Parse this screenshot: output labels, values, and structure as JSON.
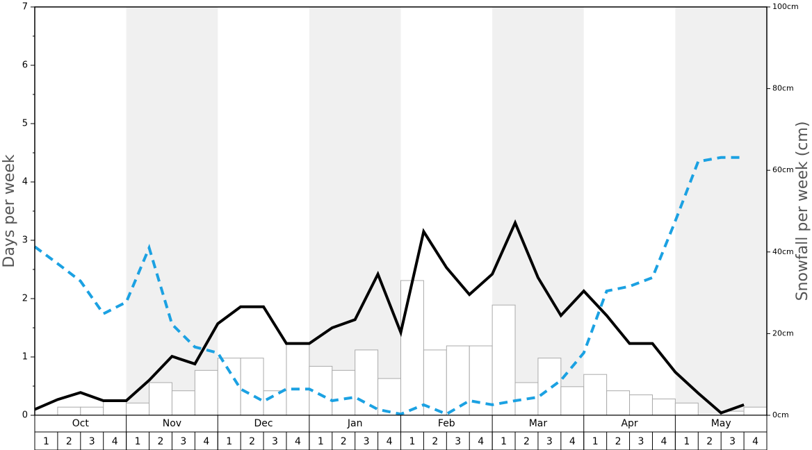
{
  "chart_data": {
    "type": "bar_line",
    "ylabel": "Days per week",
    "y2label": "Snowfall per week (cm)",
    "months": [
      "Oct",
      "Nov",
      "Dec",
      "Jan",
      "Feb",
      "Mar",
      "Apr",
      "May"
    ],
    "categories": [
      "1",
      "2",
      "3",
      "4",
      "1",
      "2",
      "3",
      "4",
      "1",
      "2",
      "3",
      "4",
      "1",
      "2",
      "3",
      "4",
      "1",
      "2",
      "3",
      "4",
      "1",
      "2",
      "3",
      "4",
      "1",
      "2",
      "3",
      "4",
      "1",
      "2",
      "3",
      "4"
    ],
    "ylim": [
      0,
      7
    ],
    "yticks": [
      0,
      1,
      2,
      3,
      4,
      5,
      6,
      7
    ],
    "y2lim": [
      0,
      100
    ],
    "y2ticks": [
      {
        "value": 0,
        "label": "0cm"
      },
      {
        "value": 20,
        "label": "20cm"
      },
      {
        "value": 40,
        "label": "40cm"
      },
      {
        "value": 60,
        "label": "60cm"
      },
      {
        "value": 80,
        "label": "80cm"
      },
      {
        "value": 100,
        "label": "100cm"
      }
    ],
    "series": [
      {
        "type": "bar",
        "axis": "y2",
        "color": "#ffffff",
        "values": [
          0,
          2,
          2,
          3.4,
          3,
          8,
          6,
          11,
          14,
          14,
          6,
          17.5,
          12,
          11,
          16,
          9,
          33,
          16,
          17,
          17,
          27,
          8,
          14,
          7,
          10,
          6,
          5,
          4,
          3,
          0,
          1,
          2
        ]
      },
      {
        "type": "line",
        "color": "#000000",
        "values": [
          0.1,
          0.27,
          0.39,
          0.25,
          0.25,
          0.6,
          1.01,
          0.88,
          1.57,
          1.86,
          1.86,
          1.23,
          1.23,
          1.5,
          1.64,
          2.42,
          1.42,
          3.15,
          2.53,
          2.07,
          2.42,
          3.3,
          2.36,
          1.71,
          2.13,
          1.71,
          1.23,
          1.23,
          0.74,
          0.38,
          0.04,
          0.18
        ]
      },
      {
        "type": "dashed",
        "color": "#1ba1e2",
        "values": [
          2.89,
          2.6,
          2.3,
          1.74,
          1.94,
          2.87,
          1.56,
          1.17,
          1.07,
          0.45,
          0.24,
          0.45,
          0.45,
          0.25,
          0.31,
          0.1,
          0.02,
          0.18,
          0.02,
          0.25,
          0.18,
          0.25,
          0.31,
          0.6,
          1.07,
          2.13,
          2.21,
          2.36,
          3.33,
          4.35,
          4.42,
          4.42
        ]
      }
    ]
  }
}
